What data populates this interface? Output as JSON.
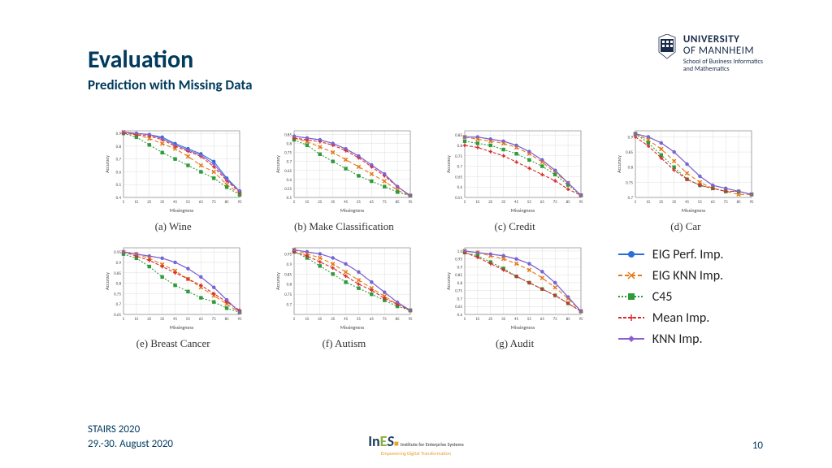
{
  "header": {
    "title": "Evaluation",
    "subtitle": "Prediction with Missing Data"
  },
  "logo": {
    "l1": "UNIVERSITY",
    "l2": "OF MANNHEIM",
    "l3a": "School of Business Informatics",
    "l3b": "and Mathematics"
  },
  "footer": {
    "conf": "STAIRS 2020",
    "date": "29.-30. August 2020",
    "page": "10",
    "ines_tag": "Empowering Digital Transformation",
    "ines_sub": "Institute for Enterprise Systems"
  },
  "legend": [
    {
      "label": "EIG Perf. Imp.",
      "color": "#2a6fd6",
      "marker": "circle",
      "dash": "0"
    },
    {
      "label": "EIG KNN Imp.",
      "color": "#e67817",
      "marker": "x",
      "dash": "5,3"
    },
    {
      "label": "C45",
      "color": "#2e9b3a",
      "marker": "square",
      "dash": "2,2"
    },
    {
      "label": "Mean Imp.",
      "color": "#d62d2d",
      "marker": "plus",
      "dash": "4,2"
    },
    {
      "label": "KNN Imp.",
      "color": "#8a5fd0",
      "marker": "diamond",
      "dash": "0"
    }
  ],
  "chart_style": {
    "xlabel": "Missingness",
    "ylabel": "Accuracy",
    "xticks": [
      5,
      15,
      25,
      35,
      45,
      55,
      65,
      75,
      85,
      95
    ],
    "grid_color": "#dddddd",
    "border_color": "#888888",
    "line_width": 1.1,
    "marker_size": 2.2,
    "label_fontsize": 6,
    "tick_fontsize": 5
  },
  "charts": [
    {
      "caption": "(a) Wine",
      "ylim": [
        0.4,
        0.92
      ],
      "yticks": [
        0.4,
        0.5,
        0.6,
        0.7,
        0.8,
        0.9
      ],
      "series": {
        "eig_perf": [
          0.91,
          0.9,
          0.89,
          0.87,
          0.82,
          0.78,
          0.74,
          0.68,
          0.55,
          0.45
        ],
        "eig_knn": [
          0.91,
          0.89,
          0.86,
          0.82,
          0.78,
          0.72,
          0.65,
          0.6,
          0.5,
          0.43
        ],
        "c45": [
          0.9,
          0.87,
          0.81,
          0.75,
          0.7,
          0.65,
          0.6,
          0.55,
          0.48,
          0.42
        ],
        "mean": [
          0.9,
          0.89,
          0.88,
          0.85,
          0.8,
          0.76,
          0.72,
          0.64,
          0.53,
          0.44
        ],
        "knn": [
          0.91,
          0.9,
          0.89,
          0.86,
          0.81,
          0.77,
          0.73,
          0.66,
          0.54,
          0.45
        ]
      }
    },
    {
      "caption": "(b) Make Classification",
      "ylim": [
        0.5,
        0.87
      ],
      "yticks": [
        0.5,
        0.55,
        0.6,
        0.65,
        0.7,
        0.75,
        0.8,
        0.85
      ],
      "series": {
        "eig_perf": [
          0.84,
          0.83,
          0.82,
          0.8,
          0.77,
          0.73,
          0.68,
          0.63,
          0.56,
          0.51
        ],
        "eig_knn": [
          0.83,
          0.81,
          0.78,
          0.75,
          0.71,
          0.67,
          0.63,
          0.59,
          0.54,
          0.51
        ],
        "c45": [
          0.82,
          0.79,
          0.74,
          0.7,
          0.66,
          0.62,
          0.59,
          0.56,
          0.53,
          0.51
        ],
        "mean": [
          0.83,
          0.82,
          0.81,
          0.79,
          0.76,
          0.72,
          0.67,
          0.62,
          0.56,
          0.51
        ],
        "knn": [
          0.84,
          0.83,
          0.82,
          0.8,
          0.77,
          0.73,
          0.68,
          0.63,
          0.56,
          0.51
        ]
      }
    },
    {
      "caption": "(c) Credit",
      "ylim": [
        0.55,
        0.87
      ],
      "yticks": [
        0.55,
        0.6,
        0.65,
        0.7,
        0.75,
        0.8,
        0.85
      ],
      "series": {
        "eig_perf": [
          0.84,
          0.84,
          0.83,
          0.82,
          0.8,
          0.77,
          0.73,
          0.68,
          0.62,
          0.56
        ],
        "eig_knn": [
          0.84,
          0.83,
          0.82,
          0.81,
          0.79,
          0.76,
          0.72,
          0.67,
          0.62,
          0.56
        ],
        "c45": [
          0.82,
          0.81,
          0.8,
          0.78,
          0.76,
          0.73,
          0.7,
          0.66,
          0.61,
          0.56
        ],
        "mean": [
          0.8,
          0.79,
          0.77,
          0.75,
          0.72,
          0.69,
          0.66,
          0.63,
          0.59,
          0.56
        ],
        "knn": [
          0.84,
          0.84,
          0.83,
          0.82,
          0.8,
          0.77,
          0.73,
          0.68,
          0.62,
          0.56
        ]
      }
    },
    {
      "caption": "(d) Car",
      "ylim": [
        0.7,
        0.92
      ],
      "yticks": [
        0.7,
        0.75,
        0.8,
        0.85,
        0.9
      ],
      "series": {
        "eig_perf": [
          0.91,
          0.9,
          0.88,
          0.85,
          0.81,
          0.77,
          0.74,
          0.73,
          0.72,
          0.71
        ],
        "eig_knn": [
          0.91,
          0.89,
          0.86,
          0.82,
          0.78,
          0.75,
          0.73,
          0.72,
          0.71,
          0.71
        ],
        "c45": [
          0.91,
          0.88,
          0.84,
          0.8,
          0.76,
          0.74,
          0.73,
          0.72,
          0.72,
          0.71
        ],
        "mean": [
          0.9,
          0.87,
          0.83,
          0.79,
          0.76,
          0.74,
          0.73,
          0.72,
          0.72,
          0.71
        ],
        "knn": [
          0.91,
          0.9,
          0.88,
          0.85,
          0.81,
          0.77,
          0.74,
          0.73,
          0.72,
          0.71
        ]
      }
    },
    {
      "caption": "(e) Breast Cancer",
      "ylim": [
        0.65,
        0.97
      ],
      "yticks": [
        0.65,
        0.7,
        0.75,
        0.8,
        0.85,
        0.9,
        0.95
      ],
      "series": {
        "eig_perf": [
          0.95,
          0.94,
          0.93,
          0.92,
          0.9,
          0.87,
          0.83,
          0.78,
          0.72,
          0.66
        ],
        "eig_knn": [
          0.95,
          0.94,
          0.92,
          0.89,
          0.86,
          0.82,
          0.78,
          0.74,
          0.7,
          0.66
        ],
        "c45": [
          0.94,
          0.92,
          0.88,
          0.83,
          0.79,
          0.76,
          0.73,
          0.71,
          0.68,
          0.66
        ],
        "mean": [
          0.95,
          0.93,
          0.91,
          0.88,
          0.85,
          0.82,
          0.79,
          0.75,
          0.71,
          0.67
        ],
        "knn": [
          0.95,
          0.94,
          0.93,
          0.92,
          0.9,
          0.87,
          0.83,
          0.78,
          0.72,
          0.66
        ]
      }
    },
    {
      "caption": "(f) Autism",
      "ylim": [
        0.65,
        0.98
      ],
      "yticks": [
        0.7,
        0.75,
        0.8,
        0.85,
        0.9,
        0.95
      ],
      "series": {
        "eig_perf": [
          0.97,
          0.96,
          0.95,
          0.93,
          0.9,
          0.86,
          0.81,
          0.76,
          0.71,
          0.67
        ],
        "eig_knn": [
          0.97,
          0.95,
          0.93,
          0.9,
          0.86,
          0.82,
          0.78,
          0.74,
          0.7,
          0.67
        ],
        "c45": [
          0.96,
          0.93,
          0.89,
          0.85,
          0.81,
          0.78,
          0.75,
          0.72,
          0.69,
          0.67
        ],
        "mean": [
          0.96,
          0.94,
          0.91,
          0.88,
          0.84,
          0.8,
          0.77,
          0.73,
          0.7,
          0.67
        ],
        "knn": [
          0.97,
          0.96,
          0.95,
          0.93,
          0.9,
          0.86,
          0.81,
          0.76,
          0.71,
          0.67
        ]
      }
    },
    {
      "caption": "(g) Audit",
      "ylim": [
        0.6,
        1.02
      ],
      "yticks": [
        0.6,
        0.65,
        0.7,
        0.75,
        0.8,
        0.85,
        0.9,
        0.95,
        1.0
      ],
      "series": {
        "eig_perf": [
          1.0,
          0.99,
          0.98,
          0.97,
          0.95,
          0.92,
          0.87,
          0.8,
          0.71,
          0.62
        ],
        "eig_knn": [
          1.0,
          0.99,
          0.97,
          0.95,
          0.92,
          0.88,
          0.83,
          0.77,
          0.7,
          0.62
        ],
        "c45": [
          0.99,
          0.97,
          0.93,
          0.89,
          0.84,
          0.8,
          0.76,
          0.72,
          0.67,
          0.62
        ],
        "mean": [
          0.99,
          0.96,
          0.92,
          0.88,
          0.84,
          0.8,
          0.76,
          0.72,
          0.67,
          0.62
        ],
        "knn": [
          1.0,
          0.99,
          0.98,
          0.97,
          0.95,
          0.92,
          0.87,
          0.8,
          0.71,
          0.62
        ]
      }
    }
  ]
}
